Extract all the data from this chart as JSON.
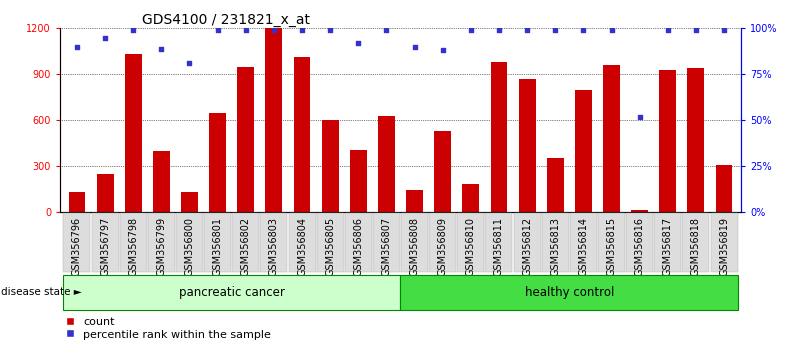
{
  "title": "GDS4100 / 231821_x_at",
  "samples": [
    "GSM356796",
    "GSM356797",
    "GSM356798",
    "GSM356799",
    "GSM356800",
    "GSM356801",
    "GSM356802",
    "GSM356803",
    "GSM356804",
    "GSM356805",
    "GSM356806",
    "GSM356807",
    "GSM356808",
    "GSM356809",
    "GSM356810",
    "GSM356811",
    "GSM356812",
    "GSM356813",
    "GSM356814",
    "GSM356815",
    "GSM356816",
    "GSM356817",
    "GSM356818",
    "GSM356819"
  ],
  "bar_values": [
    130,
    250,
    1030,
    400,
    130,
    650,
    950,
    1200,
    1010,
    600,
    410,
    630,
    145,
    530,
    185,
    980,
    870,
    355,
    800,
    960,
    18,
    930,
    940,
    310
  ],
  "percentile_values": [
    90,
    95,
    99,
    89,
    81,
    99,
    99,
    99,
    99,
    99,
    92,
    99,
    90,
    88,
    99,
    99,
    99,
    99,
    99,
    99,
    52,
    99,
    99,
    99
  ],
  "bar_color": "#cc0000",
  "dot_color": "#3333cc",
  "ylim_left": [
    0,
    1200
  ],
  "ylim_right": [
    0,
    100
  ],
  "yticks_left": [
    0,
    300,
    600,
    900,
    1200
  ],
  "yticks_right": [
    0,
    25,
    50,
    75,
    100
  ],
  "ytick_labels_left": [
    "0",
    "300",
    "600",
    "900",
    "1200"
  ],
  "ytick_labels_right": [
    "0%",
    "25%",
    "50%",
    "75%",
    "100%"
  ],
  "pancreatic_color": "#ccffcc",
  "healthy_color": "#44dd44",
  "disease_state_label": "disease state",
  "pancreatic_label": "pancreatic cancer",
  "healthy_label": "healthy control",
  "legend_count_label": "count",
  "legend_percentile_label": "percentile rank within the sample",
  "background_color": "#ffffff",
  "tick_bg_color": "#cccccc",
  "tick_cell_color": "#dddddd",
  "title_fontsize": 10,
  "tick_fontsize": 7,
  "legend_fontsize": 8,
  "disease_fontsize": 8.5
}
